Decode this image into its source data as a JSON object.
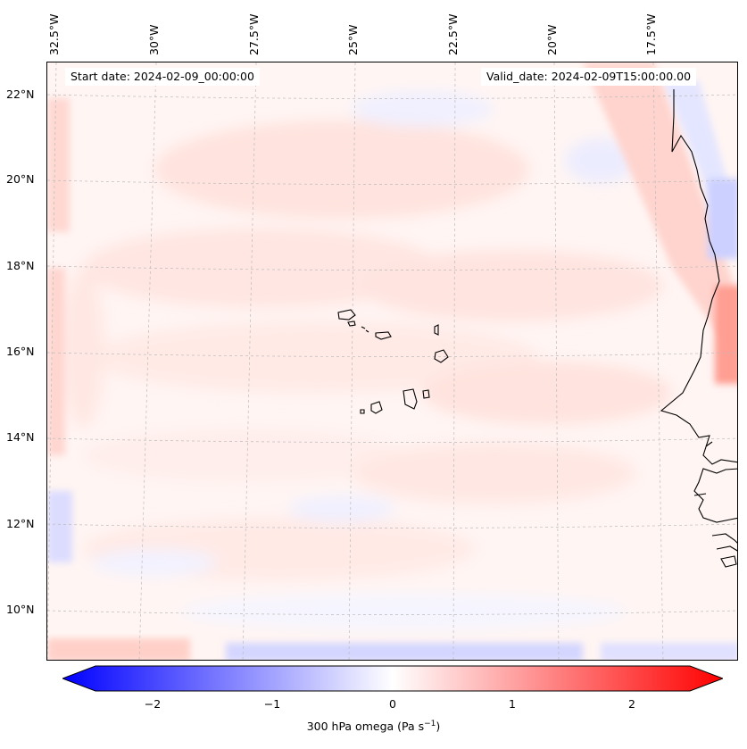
{
  "map": {
    "start_date": "Start date: 2024-02-09_00:00:00",
    "valid_date": "Valid_date: 2024-02-09T15:00:00.00",
    "lon_labels": [
      "32.5°W",
      "30°W",
      "27.5°W",
      "25°W",
      "22.5°W",
      "20°W",
      "17.5°W"
    ],
    "lat_labels": [
      "22°N",
      "20°N",
      "18°N",
      "16°N",
      "14°N",
      "12°N",
      "10°N"
    ],
    "region": "Cape Verde / West Africa coast",
    "field": "300 hPa omega"
  },
  "colorbar": {
    "ticks": [
      "−2",
      "−1",
      "0",
      "1",
      "2"
    ],
    "tick_values": [
      -2,
      -1,
      0,
      1,
      2
    ],
    "range": [
      -2.6,
      2.6
    ],
    "label_main": "300 hPa omega (Pa s",
    "label_exp": "−1",
    "label_close": ")",
    "colors": {
      "low": "#0000ff",
      "mid": "#ffffff",
      "high": "#ff0000"
    },
    "extend": "both"
  }
}
